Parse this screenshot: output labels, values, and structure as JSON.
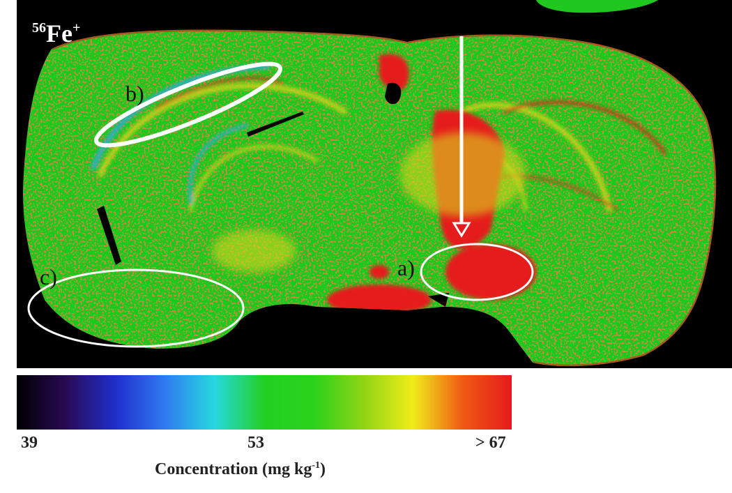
{
  "isotope": {
    "mass_number": "56",
    "element": "Fe",
    "charge": "+"
  },
  "region_labels": {
    "a": "a)",
    "b": "b)",
    "c": "c)"
  },
  "colorbar": {
    "tick_min": "39",
    "tick_mid": "53",
    "tick_max": "> 67",
    "label_main": "Concentration (mg kg",
    "label_exponent": "-1",
    "label_close": ")",
    "colors": [
      "#000000",
      "#2a0a55",
      "#1f2fcc",
      "#2f7bf0",
      "#27d8e0",
      "#22d022",
      "#2bd21c",
      "#8ed414",
      "#f1ec1a",
      "#ef5b14",
      "#e51a1c"
    ]
  },
  "colors": {
    "background": "#000000",
    "tissue_base": "#1fc81f",
    "high": "#e51a1c",
    "mid_high": "#d8d61a",
    "low": "#33a8ee",
    "annotation": "#ffffff"
  }
}
